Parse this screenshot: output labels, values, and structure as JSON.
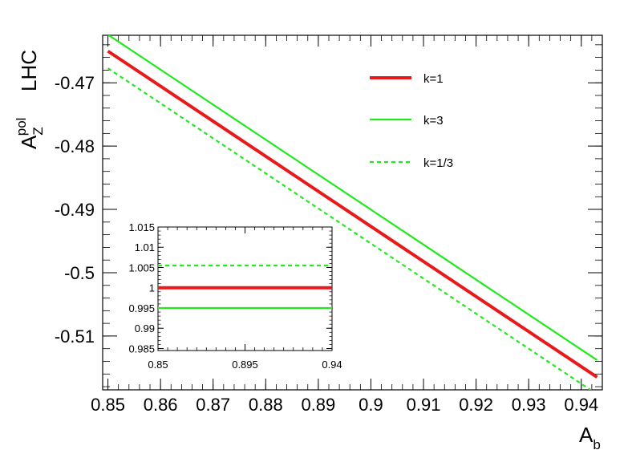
{
  "chart_data": [
    {
      "type": "line",
      "title": "",
      "tag": "LHC",
      "xlabel": {
        "base": "A",
        "sub": "b"
      },
      "ylabel": {
        "base": "A",
        "sub": "Z",
        "sup": "pol"
      },
      "xlim": [
        0.849,
        0.944
      ],
      "ylim": [
        -0.5185,
        -0.4625
      ],
      "xticks": [
        0.85,
        0.86,
        0.87,
        0.88,
        0.89,
        0.9,
        0.91,
        0.92,
        0.93,
        0.94
      ],
      "xtick_labels": [
        "0.85",
        "0.86",
        "0.87",
        "0.88",
        "0.89",
        "0.9",
        "0.91",
        "0.92",
        "0.93",
        "0.94"
      ],
      "yticks": [
        -0.47,
        -0.48,
        -0.49,
        -0.5,
        -0.51
      ],
      "ytick_labels": [
        "-0.47",
        "-0.48",
        "-0.49",
        "-0.5",
        "-0.51"
      ],
      "legend_position": "top-right",
      "series": [
        {
          "name": "k=1",
          "color": "#e8191b",
          "style": "solid-thick",
          "x": [
            0.85,
            0.943
          ],
          "y": [
            -0.465,
            -0.5165
          ]
        },
        {
          "name": "k=3",
          "color": "#22e81e",
          "style": "solid",
          "x": [
            0.85,
            0.943
          ],
          "y": [
            -0.4624,
            -0.5138
          ]
        },
        {
          "name": "k=1/3",
          "color": "#22e81e",
          "style": "dashed",
          "x": [
            0.85,
            0.943
          ],
          "y": [
            -0.4677,
            -0.5192
          ]
        }
      ]
    },
    {
      "type": "line",
      "title": "",
      "position": "inset-lower-left",
      "xlim": [
        0.85,
        0.94
      ],
      "ylim": [
        0.9845,
        1.015
      ],
      "xticks": [
        0.85,
        0.895,
        0.94
      ],
      "xtick_labels": [
        "0.85",
        "0.895",
        "0.94"
      ],
      "yticks": [
        0.985,
        0.99,
        0.995,
        1,
        1.005,
        1.01,
        1.015
      ],
      "ytick_labels": [
        "0.985",
        "0.99",
        "0.995",
        "1",
        "1.005",
        "1.01",
        "1.015"
      ],
      "series": [
        {
          "color": "#22e81e",
          "style": "dashed",
          "x": [
            0.85,
            0.94
          ],
          "y": [
            1.0055,
            1.0055
          ]
        },
        {
          "color": "#e8191b",
          "style": "solid-thick",
          "x": [
            0.85,
            0.94
          ],
          "y": [
            1.0,
            1.0
          ]
        },
        {
          "color": "#22e81e",
          "style": "solid",
          "x": [
            0.85,
            0.94
          ],
          "y": [
            0.995,
            0.995
          ]
        }
      ]
    }
  ]
}
